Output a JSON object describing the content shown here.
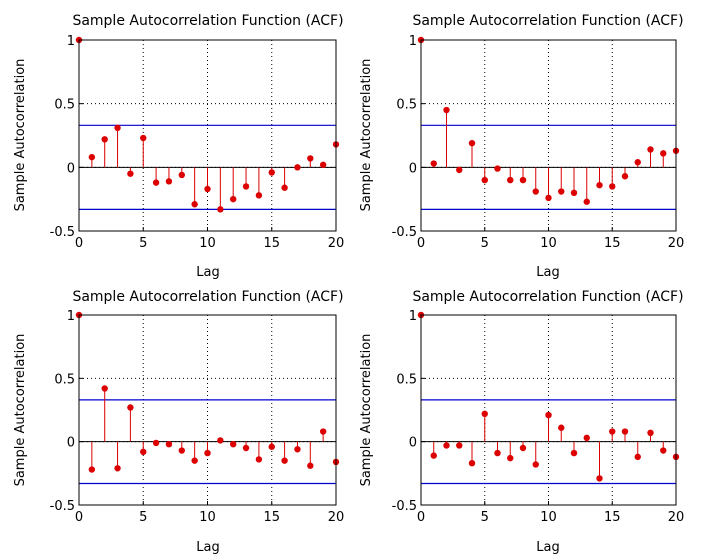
{
  "figure": {
    "background": "#ffffff",
    "stem_color": "#dd0000",
    "bound_color": "#0000cc",
    "axis_color": "#000000"
  },
  "chart_data": [
    {
      "type": "stem",
      "title": "Sample Autocorrelation Function (ACF)",
      "xlabel": "Lag",
      "ylabel": "Sample Autocorrelation",
      "xlim": [
        0,
        20
      ],
      "ylim": [
        -0.5,
        1
      ],
      "xticks": [
        "0",
        "5",
        "10",
        "15",
        "20"
      ],
      "yticks": [
        "-0.5",
        "0",
        "0.5",
        "1"
      ],
      "grid": "dotted",
      "lags": [
        0,
        1,
        2,
        3,
        4,
        5,
        6,
        7,
        8,
        9,
        10,
        11,
        12,
        13,
        14,
        15,
        16,
        17,
        18,
        19,
        20
      ],
      "acf": [
        1.0,
        0.08,
        0.22,
        0.31,
        -0.05,
        0.23,
        -0.12,
        -0.11,
        -0.06,
        -0.29,
        -0.17,
        -0.33,
        -0.25,
        -0.15,
        -0.22,
        -0.04,
        -0.16,
        0.0,
        0.07,
        0.02,
        0.18
      ],
      "bounds": [
        0.33,
        -0.33
      ]
    },
    {
      "type": "stem",
      "title": "Sample Autocorrelation Function (ACF)",
      "xlabel": "Lag",
      "ylabel": "Sample Autocorrelation",
      "xlim": [
        0,
        20
      ],
      "ylim": [
        -0.5,
        1
      ],
      "xticks": [
        "0",
        "5",
        "10",
        "15",
        "20"
      ],
      "yticks": [
        "-0.5",
        "0",
        "0.5",
        "1"
      ],
      "grid": "dotted",
      "lags": [
        0,
        1,
        2,
        3,
        4,
        5,
        6,
        7,
        8,
        9,
        10,
        11,
        12,
        13,
        14,
        15,
        16,
        17,
        18,
        19,
        20
      ],
      "acf": [
        1.0,
        0.03,
        0.45,
        -0.02,
        0.19,
        -0.1,
        -0.01,
        -0.1,
        -0.1,
        -0.19,
        -0.24,
        -0.19,
        -0.2,
        -0.27,
        -0.14,
        -0.15,
        -0.07,
        0.04,
        0.14,
        0.11,
        0.13
      ],
      "bounds": [
        0.33,
        -0.33
      ]
    },
    {
      "type": "stem",
      "title": "Sample Autocorrelation Function (ACF)",
      "xlabel": "Lag",
      "ylabel": "Sample Autocorrelation",
      "xlim": [
        0,
        20
      ],
      "ylim": [
        -0.5,
        1
      ],
      "xticks": [
        "0",
        "5",
        "10",
        "15",
        "20"
      ],
      "yticks": [
        "-0.5",
        "0",
        "0.5",
        "1"
      ],
      "grid": "dotted",
      "lags": [
        0,
        1,
        2,
        3,
        4,
        5,
        6,
        7,
        8,
        9,
        10,
        11,
        12,
        13,
        14,
        15,
        16,
        17,
        18,
        19,
        20
      ],
      "acf": [
        1.0,
        -0.22,
        0.42,
        -0.21,
        0.27,
        -0.08,
        -0.01,
        -0.02,
        -0.07,
        -0.15,
        -0.09,
        0.01,
        -0.02,
        -0.05,
        -0.14,
        -0.04,
        -0.15,
        -0.06,
        -0.19,
        0.08,
        -0.16
      ],
      "bounds": [
        0.33,
        -0.33
      ]
    },
    {
      "type": "stem",
      "title": "Sample Autocorrelation Function (ACF)",
      "xlabel": "Lag",
      "ylabel": "Sample Autocorrelation",
      "xlim": [
        0,
        20
      ],
      "ylim": [
        -0.5,
        1
      ],
      "xticks": [
        "0",
        "5",
        "10",
        "15",
        "20"
      ],
      "yticks": [
        "-0.5",
        "0",
        "0.5",
        "1"
      ],
      "grid": "dotted",
      "lags": [
        0,
        1,
        2,
        3,
        4,
        5,
        6,
        7,
        8,
        9,
        10,
        11,
        12,
        13,
        14,
        15,
        16,
        17,
        18,
        19,
        20
      ],
      "acf": [
        1.0,
        -0.11,
        -0.03,
        -0.03,
        -0.17,
        0.22,
        -0.09,
        -0.13,
        -0.05,
        -0.18,
        0.21,
        0.11,
        -0.09,
        0.03,
        -0.29,
        0.08,
        0.08,
        -0.12,
        0.07,
        -0.07,
        -0.12
      ],
      "bounds": [
        0.33,
        -0.33
      ]
    }
  ]
}
